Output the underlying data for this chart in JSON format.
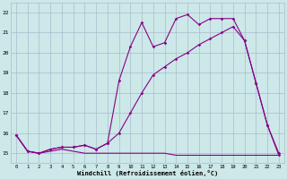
{
  "background_color": "#cce8e8",
  "grid_color": "#aabbcc",
  "line_color": "#880088",
  "xlim_min": -0.5,
  "xlim_max": 23.5,
  "ylim_min": 14.5,
  "ylim_max": 22.5,
  "xticks": [
    0,
    1,
    2,
    3,
    4,
    5,
    6,
    7,
    8,
    9,
    10,
    11,
    12,
    13,
    14,
    15,
    16,
    17,
    18,
    19,
    20,
    21,
    22,
    23
  ],
  "yticks": [
    15,
    16,
    17,
    18,
    19,
    20,
    21,
    22
  ],
  "xlabel": "Windchill (Refroidissement éolien,°C)",
  "line1_x": [
    0,
    1,
    2,
    3,
    4,
    5,
    6,
    7,
    8,
    9,
    10,
    11,
    12,
    13,
    14,
    15,
    16,
    17,
    18,
    19,
    20,
    21,
    22,
    23
  ],
  "line1_y": [
    15.9,
    15.1,
    15.0,
    15.1,
    15.2,
    15.1,
    15.0,
    15.0,
    15.0,
    15.0,
    15.0,
    15.0,
    15.0,
    15.0,
    14.9,
    14.9,
    14.9,
    14.9,
    14.9,
    14.9,
    14.9,
    14.9,
    14.9,
    14.9
  ],
  "line2_x": [
    0,
    1,
    2,
    3,
    4,
    5,
    6,
    7,
    8,
    9,
    10,
    11,
    12,
    13,
    14,
    15,
    16,
    17,
    18,
    19,
    20,
    21,
    22,
    23
  ],
  "line2_y": [
    15.9,
    15.1,
    15.0,
    15.2,
    15.3,
    15.3,
    15.4,
    15.2,
    15.5,
    16.0,
    17.0,
    18.0,
    18.9,
    19.3,
    19.7,
    20.0,
    20.4,
    20.7,
    21.0,
    21.3,
    20.6,
    18.5,
    16.4,
    15.0
  ],
  "line3_x": [
    0,
    1,
    2,
    3,
    4,
    5,
    6,
    7,
    8,
    9,
    10,
    11,
    12,
    13,
    14,
    15,
    16,
    17,
    18,
    19,
    20,
    21,
    22,
    23
  ],
  "line3_y": [
    15.9,
    15.1,
    15.0,
    15.2,
    15.3,
    15.3,
    15.4,
    15.2,
    15.5,
    18.6,
    20.3,
    21.5,
    20.3,
    20.5,
    21.7,
    21.9,
    21.4,
    21.7,
    21.7,
    21.7,
    20.6,
    18.5,
    16.4,
    14.9
  ]
}
